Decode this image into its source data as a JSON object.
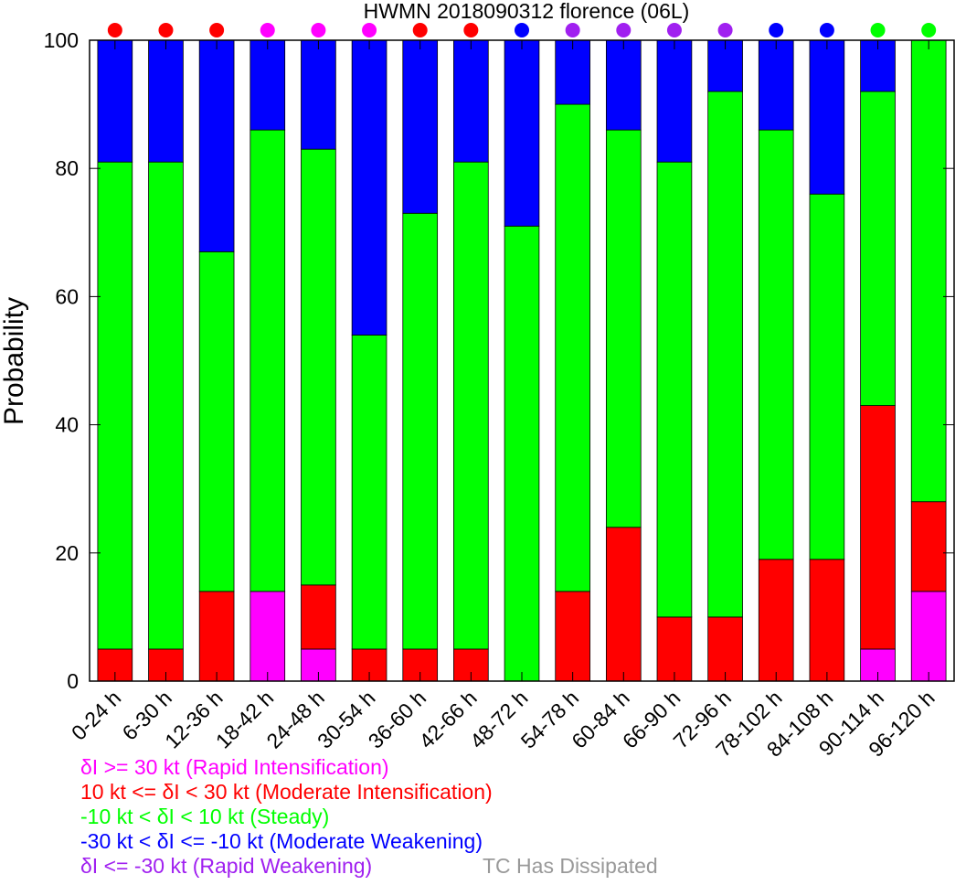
{
  "chart_data": {
    "type": "bar",
    "title": "HWMN 2018090312 florence (06L)",
    "ylabel": "Probability",
    "xlabel": "",
    "ylim": [
      0,
      100
    ],
    "yticks": [
      0,
      20,
      40,
      60,
      80,
      100
    ],
    "stacked": true,
    "categories": [
      "0-24 h",
      "6-30 h",
      "12-36 h",
      "18-42 h",
      "24-48 h",
      "30-54 h",
      "36-60 h",
      "42-66 h",
      "48-72 h",
      "54-78 h",
      "60-84 h",
      "66-90 h",
      "72-96 h",
      "78-102 h",
      "84-108 h",
      "90-114 h",
      "96-120 h"
    ],
    "series": [
      {
        "color": "#ff00ff",
        "values": [
          0,
          0,
          0,
          14,
          5,
          0,
          0,
          0,
          0,
          0,
          0,
          0,
          0,
          0,
          0,
          5,
          14
        ]
      },
      {
        "color": "#ff0000",
        "values": [
          5,
          5,
          14,
          0,
          10,
          5,
          5,
          5,
          0,
          14,
          24,
          10,
          10,
          19,
          19,
          38,
          14
        ]
      },
      {
        "color": "#00ff00",
        "values": [
          76,
          76,
          53,
          72,
          68,
          49,
          68,
          76,
          71,
          76,
          62,
          71,
          82,
          67,
          57,
          49,
          72
        ]
      },
      {
        "color": "#0000ff",
        "values": [
          19,
          19,
          33,
          14,
          17,
          46,
          27,
          19,
          29,
          10,
          14,
          19,
          8,
          14,
          24,
          8,
          0
        ]
      },
      {
        "color": "#a020f0",
        "values": [
          0,
          0,
          0,
          0,
          0,
          0,
          0,
          0,
          0,
          0,
          0,
          0,
          0,
          0,
          0,
          0,
          0
        ]
      }
    ],
    "marker_colors": [
      "#ff0000",
      "#ff0000",
      "#ff0000",
      "#ff00ff",
      "#ff00ff",
      "#ff00ff",
      "#ff0000",
      "#ff0000",
      "#0000ff",
      "#a020f0",
      "#a020f0",
      "#a020f0",
      "#a020f0",
      "#0000ff",
      "#0000ff",
      "#00ff00",
      "#00ff00"
    ],
    "grid": false
  },
  "legend": [
    {
      "text": "δI >= 30 kt (Rapid Intensification)",
      "color": "#ff00ff"
    },
    {
      "text": "10 kt <= δI < 30 kt (Moderate Intensification)",
      "color": "#ff0000"
    },
    {
      "text": "-10 kt < δI < 10 kt (Steady)",
      "color": "#00ff00"
    },
    {
      "text": "-30 kt < δI <= -10 kt (Moderate Weakening)",
      "color": "#0000ff"
    },
    {
      "text": "δI <= -30 kt (Rapid Weakening)",
      "color": "#a020f0"
    }
  ],
  "dissipated": {
    "text": "TC Has Dissipated",
    "color": "#999999"
  }
}
